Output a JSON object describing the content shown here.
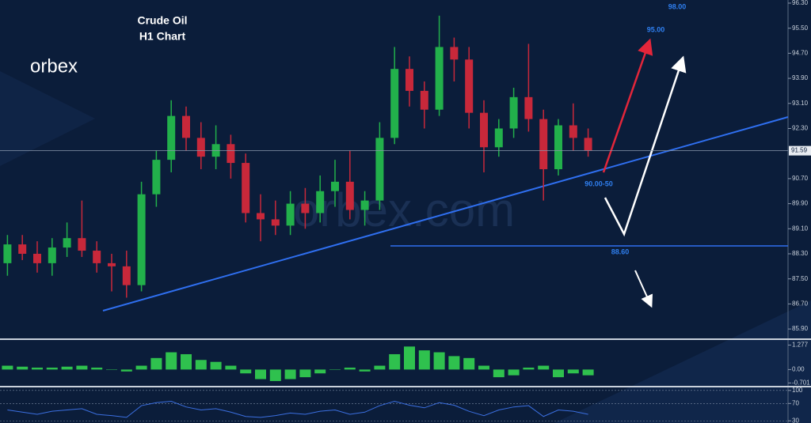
{
  "chart_data": [
    {
      "type": "candlestick",
      "title": "Crude Oil",
      "subtitle": "H1 Chart",
      "logo": "orbex",
      "watermark": "orbex.com",
      "up_color": "#22b04b",
      "down_color": "#c8283a",
      "open": [
        88.0,
        88.6,
        88.3,
        88.0,
        88.5,
        88.8,
        88.4,
        88.0,
        87.9,
        87.3,
        90.2,
        91.3,
        92.7,
        92.0,
        91.4,
        91.8,
        91.2,
        89.6,
        89.4,
        89.2,
        89.9,
        89.6,
        90.3,
        90.6,
        89.7,
        90.0,
        92.0,
        94.2,
        93.5,
        92.9,
        94.9,
        94.5,
        92.8,
        91.7,
        92.3,
        93.3,
        92.6,
        91.0,
        92.4,
        92.0
      ],
      "high": [
        88.9,
        88.9,
        88.7,
        88.8,
        89.3,
        90.0,
        88.7,
        88.3,
        88.4,
        90.6,
        91.6,
        93.2,
        93.0,
        92.5,
        92.4,
        92.1,
        91.5,
        90.2,
        90.0,
        90.3,
        90.4,
        90.8,
        91.3,
        91.6,
        90.3,
        92.5,
        94.9,
        94.6,
        93.8,
        95.9,
        95.2,
        94.9,
        93.2,
        92.6,
        93.6,
        95.0,
        92.9,
        92.6,
        93.1,
        92.3
      ],
      "low": [
        87.6,
        88.1,
        87.7,
        87.6,
        88.2,
        88.2,
        87.7,
        87.1,
        86.9,
        87.1,
        89.8,
        90.9,
        91.6,
        91.0,
        91.0,
        90.7,
        89.3,
        88.7,
        88.9,
        88.9,
        89.1,
        89.3,
        89.8,
        89.4,
        89.2,
        89.7,
        91.8,
        93.0,
        92.3,
        92.7,
        93.8,
        92.3,
        90.9,
        91.4,
        92.0,
        92.2,
        90.0,
        90.8,
        91.6,
        91.4
      ],
      "close": [
        88.6,
        88.3,
        88.0,
        88.5,
        88.8,
        88.4,
        88.0,
        87.9,
        87.3,
        90.2,
        91.3,
        92.7,
        92.0,
        91.4,
        91.8,
        91.2,
        89.6,
        89.4,
        89.2,
        89.9,
        89.6,
        90.3,
        90.6,
        89.7,
        90.0,
        92.0,
        94.2,
        93.5,
        92.9,
        94.9,
        94.5,
        92.8,
        91.7,
        92.3,
        93.3,
        92.6,
        91.0,
        92.4,
        92.0,
        91.6
      ],
      "last_price": {
        "value": 91.59,
        "label": "91.59"
      },
      "annotations": [
        "98.00",
        "95.00",
        "90.00-50",
        "88.60"
      ],
      "ylim": [
        85.6,
        96.4
      ],
      "yticks": [
        {
          "value": 96.3,
          "label": "96.30"
        },
        {
          "value": 95.5,
          "label": "95.50"
        },
        {
          "value": 94.7,
          "label": "94.70"
        },
        {
          "value": 93.9,
          "label": "93.90"
        },
        {
          "value": 93.1,
          "label": "93.10"
        },
        {
          "value": 92.3,
          "label": "92.30"
        },
        {
          "value": 90.7,
          "label": "90.70"
        },
        {
          "value": 89.9,
          "label": "89.90"
        },
        {
          "value": 89.1,
          "label": "89.10"
        },
        {
          "value": 88.3,
          "label": "88.30"
        },
        {
          "value": 87.5,
          "label": "87.50"
        },
        {
          "value": 86.7,
          "label": "86.70"
        },
        {
          "value": 85.9,
          "label": "85.90"
        }
      ]
    },
    {
      "type": "bar",
      "color": "#2fc14e",
      "values": [
        0.2,
        0.15,
        0.1,
        0.1,
        0.15,
        0.2,
        0.1,
        0.0,
        -0.1,
        0.2,
        0.6,
        0.9,
        0.8,
        0.5,
        0.4,
        0.2,
        -0.2,
        -0.5,
        -0.6,
        -0.5,
        -0.4,
        -0.2,
        0.0,
        0.1,
        -0.1,
        0.2,
        0.8,
        1.2,
        1.0,
        0.9,
        0.7,
        0.6,
        0.2,
        -0.4,
        -0.3,
        0.1,
        0.2,
        -0.4,
        -0.2,
        -0.3
      ],
      "ylim": [
        -0.85,
        1.5
      ],
      "yticks": [
        1.277,
        {
          "value": 0,
          "label": "0.00"
        },
        -0.701
      ]
    },
    {
      "type": "line",
      "color": "#3b6fe0",
      "values": [
        55,
        50,
        45,
        52,
        55,
        58,
        45,
        42,
        38,
        65,
        72,
        75,
        62,
        55,
        58,
        50,
        40,
        38,
        42,
        48,
        45,
        52,
        55,
        45,
        50,
        65,
        75,
        66,
        60,
        72,
        66,
        52,
        42,
        55,
        62,
        65,
        40,
        55,
        52,
        45
      ],
      "ylim": [
        25,
        107
      ],
      "yticks": [
        100,
        70,
        30
      ]
    }
  ]
}
